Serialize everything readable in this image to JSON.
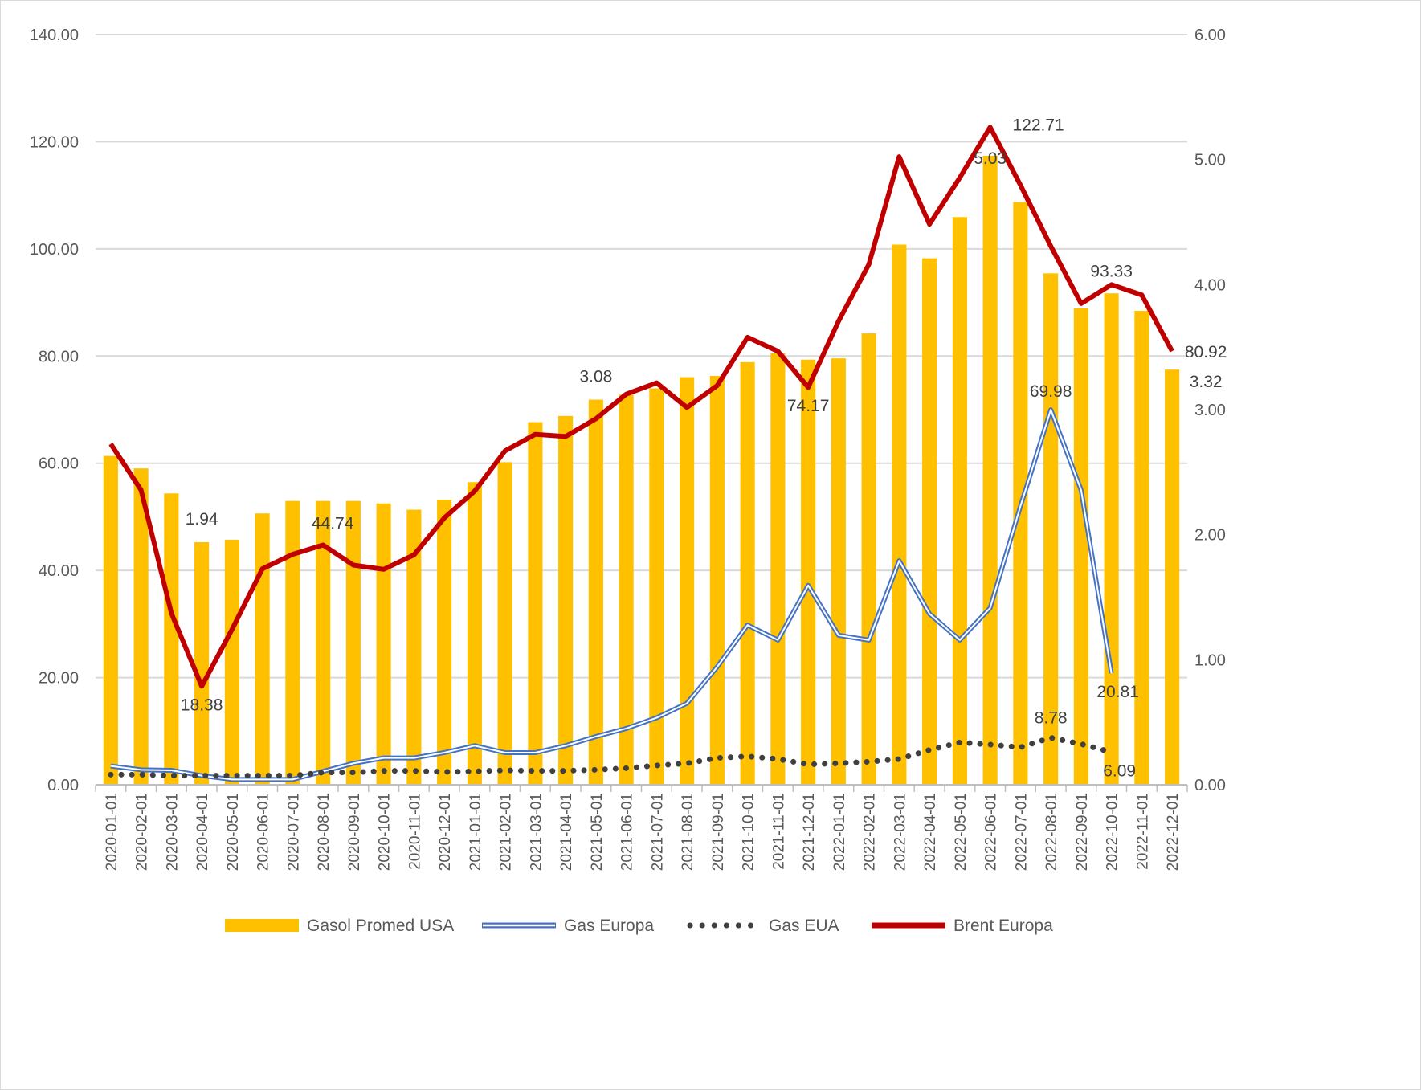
{
  "chart_data": {
    "type": "bar",
    "categories": [
      "2020-01-01",
      "2020-02-01",
      "2020-03-01",
      "2020-04-01",
      "2020-05-01",
      "2020-06-01",
      "2020-07-01",
      "2020-08-01",
      "2020-09-01",
      "2020-10-01",
      "2020-11-01",
      "2020-12-01",
      "2021-01-01",
      "2021-02-01",
      "2021-03-01",
      "2021-04-01",
      "2021-05-01",
      "2021-06-01",
      "2021-07-01",
      "2021-08-01",
      "2021-09-01",
      "2021-10-01",
      "2021-11-01",
      "2021-12-01",
      "2022-01-01",
      "2022-02-01",
      "2022-03-01",
      "2022-04-01",
      "2022-05-01",
      "2022-06-01",
      "2022-07-01",
      "2022-08-01",
      "2022-09-01",
      "2022-10-01",
      "2022-11-01",
      "2022-12-01"
    ],
    "y_left": {
      "ylim": [
        0,
        140
      ],
      "ticks": [
        "0.00",
        "20.00",
        "40.00",
        "60.00",
        "80.00",
        "100.00",
        "120.00",
        "140.00"
      ]
    },
    "y_right": {
      "ylim": [
        0,
        6
      ],
      "ticks": [
        "0.00",
        "1.00",
        "2.00",
        "3.00",
        "4.00",
        "5.00",
        "6.00"
      ]
    },
    "grid": true,
    "legend_position": "bottom",
    "series": [
      {
        "name": "Gasol Promed USA",
        "kind": "bar",
        "axis": "right",
        "color": "#FFC000",
        "values": [
          2.63,
          2.53,
          2.33,
          1.94,
          1.96,
          2.17,
          2.27,
          2.27,
          2.27,
          2.25,
          2.2,
          2.28,
          2.42,
          2.58,
          2.9,
          2.95,
          3.08,
          3.12,
          3.17,
          3.26,
          3.27,
          3.38,
          3.45,
          3.4,
          3.41,
          3.61,
          4.32,
          4.21,
          4.54,
          5.03,
          4.66,
          4.09,
          3.81,
          3.93,
          3.79,
          3.32
        ]
      },
      {
        "name": "Gas Europa",
        "kind": "line",
        "style": "double",
        "axis": "left",
        "color": "#4472C4",
        "values": [
          3.5,
          2.8,
          2.7,
          1.7,
          1.0,
          1.0,
          1.0,
          2.5,
          4.0,
          5.0,
          5.0,
          6.0,
          7.3,
          6.0,
          6.0,
          7.3,
          9.0,
          10.5,
          12.5,
          15.2,
          22.0,
          29.8,
          27.0,
          37.2,
          27.9,
          27.0,
          41.8,
          31.9,
          27.0,
          33.0,
          52.0,
          69.98,
          55.0,
          20.81,
          null,
          null
        ]
      },
      {
        "name": "Gas EUA",
        "kind": "line",
        "style": "dotted",
        "axis": "left",
        "color": "#404040",
        "values": [
          1.9,
          1.9,
          1.7,
          1.7,
          1.7,
          1.7,
          1.7,
          2.3,
          2.3,
          2.6,
          2.6,
          2.4,
          2.5,
          2.7,
          2.6,
          2.6,
          2.8,
          3.1,
          3.6,
          4.0,
          5.0,
          5.3,
          4.8,
          3.8,
          4.0,
          4.3,
          4.8,
          6.5,
          7.9,
          7.5,
          7.0,
          8.78,
          7.6,
          6.09,
          null,
          null
        ]
      },
      {
        "name": "Brent Europa",
        "kind": "line",
        "style": "solid",
        "axis": "left",
        "color": "#C00000",
        "values": [
          63.6,
          55.0,
          32.0,
          18.38,
          29.0,
          40.3,
          43.0,
          44.74,
          41.0,
          40.2,
          42.9,
          49.8,
          54.8,
          62.3,
          65.4,
          65.0,
          68.3,
          72.9,
          75.0,
          70.4,
          74.5,
          83.5,
          80.9,
          74.17,
          86.5,
          97.1,
          117.2,
          104.6,
          113.3,
          122.71,
          111.9,
          100.5,
          89.8,
          93.33,
          91.4,
          80.92
        ]
      }
    ],
    "data_labels": [
      {
        "text": "1.94",
        "series": "Gasol Promed USA",
        "index": 3
      },
      {
        "text": "3.08",
        "series": "Gasol Promed USA",
        "index": 16
      },
      {
        "text": "5.03",
        "series": "Gasol Promed USA",
        "index": 29
      },
      {
        "text": "3.32",
        "series": "Gasol Promed USA",
        "index": 35
      },
      {
        "text": "18.38",
        "series": "Brent Europa",
        "index": 3
      },
      {
        "text": "44.74",
        "series": "Brent Europa",
        "index": 7
      },
      {
        "text": "74.17",
        "series": "Brent Europa",
        "index": 23
      },
      {
        "text": "122.71",
        "series": "Brent Europa",
        "index": 29
      },
      {
        "text": "93.33",
        "series": "Brent Europa",
        "index": 33
      },
      {
        "text": "80.92",
        "series": "Brent Europa",
        "index": 35
      },
      {
        "text": "69.98",
        "series": "Gas Europa",
        "index": 31
      },
      {
        "text": "20.81",
        "series": "Gas Europa",
        "index": 33
      },
      {
        "text": "8.78",
        "series": "Gas EUA",
        "index": 31
      },
      {
        "text": "6.09",
        "series": "Gas EUA",
        "index": 33
      }
    ]
  }
}
